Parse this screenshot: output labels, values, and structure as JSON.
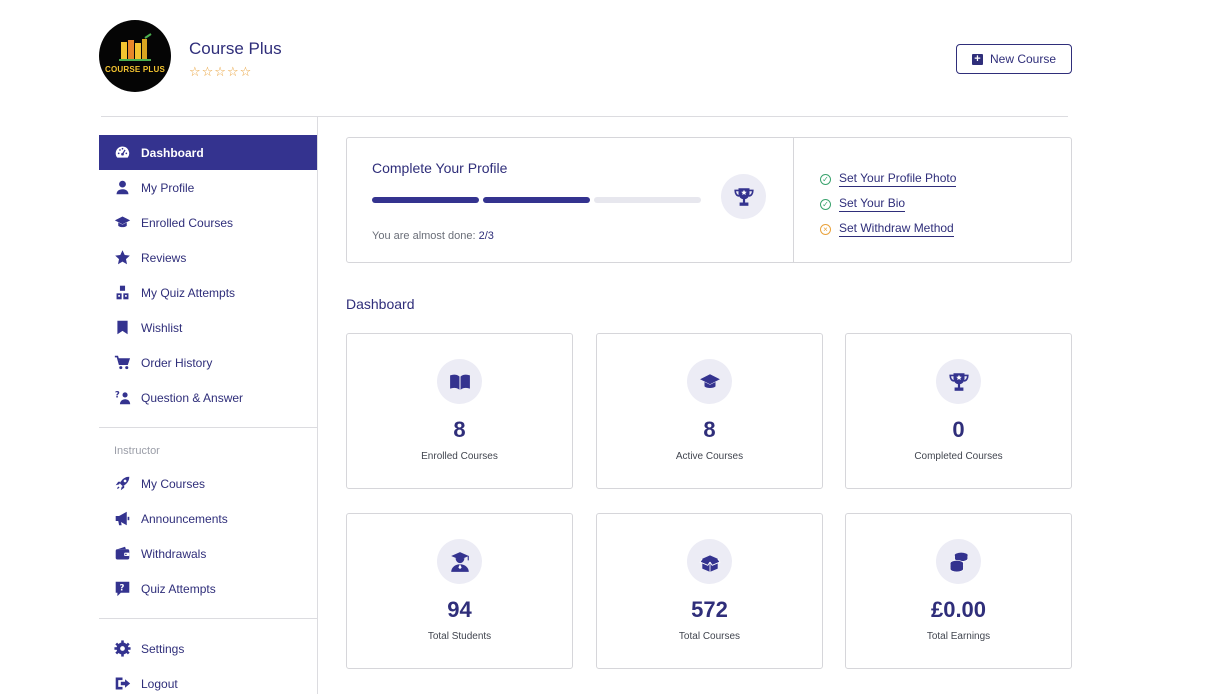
{
  "header": {
    "logo_text": "COURSE PLUS",
    "site_title": "Course Plus",
    "rating_stars": "☆☆☆☆☆",
    "new_course_label": "New Course"
  },
  "sidebar": {
    "items": [
      {
        "label": "Dashboard",
        "icon": "dashboard-icon"
      },
      {
        "label": "My Profile",
        "icon": "user-icon"
      },
      {
        "label": "Enrolled Courses",
        "icon": "graduation-cap-icon"
      },
      {
        "label": "Reviews",
        "icon": "star-icon"
      },
      {
        "label": "My Quiz Attempts",
        "icon": "cubes-icon"
      },
      {
        "label": "Wishlist",
        "icon": "bookmark-icon"
      },
      {
        "label": "Order History",
        "icon": "cart-icon"
      },
      {
        "label": "Question & Answer",
        "icon": "question-answer-icon"
      }
    ],
    "instructor_heading": "Instructor",
    "instructor_items": [
      {
        "label": "My Courses",
        "icon": "rocket-icon"
      },
      {
        "label": "Announcements",
        "icon": "megaphone-icon"
      },
      {
        "label": "Withdrawals",
        "icon": "wallet-icon"
      },
      {
        "label": "Quiz Attempts",
        "icon": "quiz-icon"
      }
    ],
    "bottom_items": [
      {
        "label": "Settings",
        "icon": "gear-icon"
      },
      {
        "label": "Logout",
        "icon": "logout-icon"
      }
    ]
  },
  "profile": {
    "title": "Complete Your Profile",
    "progress_done": 2,
    "progress_total": 3,
    "progress_prefix": "You are almost done: ",
    "progress_value": "2/3",
    "checklist": [
      {
        "label": "Set Your Profile Photo",
        "status": "done"
      },
      {
        "label": "Set Your Bio",
        "status": "done"
      },
      {
        "label": "Set Withdraw Method",
        "status": "pending"
      }
    ]
  },
  "dashboard": {
    "title": "Dashboard",
    "stats": [
      {
        "value": "8",
        "label": "Enrolled Courses",
        "icon": "open-book-icon"
      },
      {
        "value": "8",
        "label": "Active Courses",
        "icon": "graduation-cap-icon"
      },
      {
        "value": "0",
        "label": "Completed Courses",
        "icon": "trophy-icon"
      },
      {
        "value": "94",
        "label": "Total Students",
        "icon": "student-icon"
      },
      {
        "value": "572",
        "label": "Total Courses",
        "icon": "box-icon"
      },
      {
        "value": "£0.00",
        "label": "Total Earnings",
        "icon": "coins-icon"
      }
    ]
  },
  "colors": {
    "primary": "#34338f",
    "text": "#2f2e7a",
    "border": "#d6d6da",
    "success": "#3aa36d",
    "warning": "#e9a23b"
  }
}
